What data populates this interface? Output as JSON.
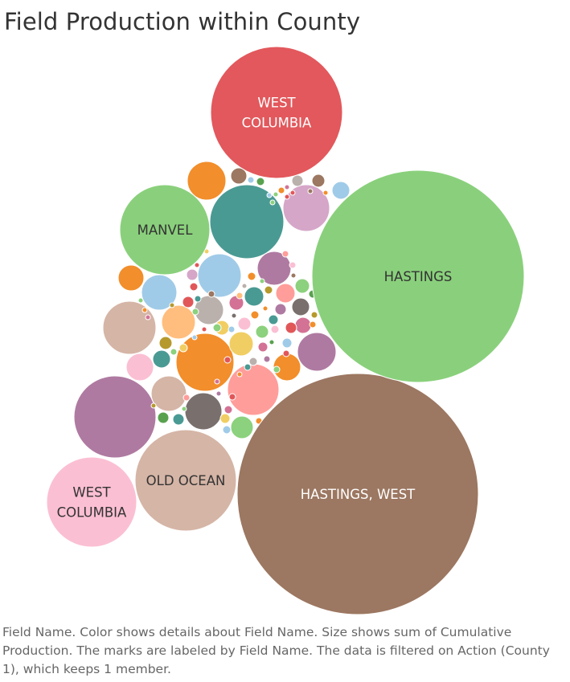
{
  "title": "Field Production within County",
  "caption": "Field Name.  Color shows details about Field Name.  Size shows sum of Cumulative Production.  The marks are labeled by Field Name. The data is filtered on Action (County 1), which keeps 1 member.",
  "chart_data": {
    "type": "packed-bubble",
    "size_measure": "Cumulative Production",
    "color_dimension": "Field Name",
    "labeled_bubbles": [
      {
        "name": "HASTINGS, WEST",
        "lines": [
          "HASTINGS, WEST"
        ],
        "color": "#9c7761",
        "text_color": "#ffffff"
      },
      {
        "name": "HASTINGS",
        "lines": [
          "HASTINGS"
        ],
        "color": "#8ad07c",
        "text_color": "#333333"
      },
      {
        "name": "WEST COLUMBIA",
        "lines": [
          "WEST",
          "COLUMBIA"
        ],
        "color": "#e2585c",
        "text_color": "#ffffff"
      },
      {
        "name": "OLD OCEAN",
        "lines": [
          "OLD OCEAN"
        ],
        "color": "#d5b5a6",
        "text_color": "#333333"
      },
      {
        "name": "MANVEL",
        "lines": [
          "MANVEL"
        ],
        "color": "#8ad07c",
        "text_color": "#333333"
      },
      {
        "name": "WEST COLUMBIA",
        "lines": [
          "WEST",
          "COLUMBIA"
        ],
        "color": "#fbbfd3",
        "text_color": "#333333"
      }
    ]
  }
}
